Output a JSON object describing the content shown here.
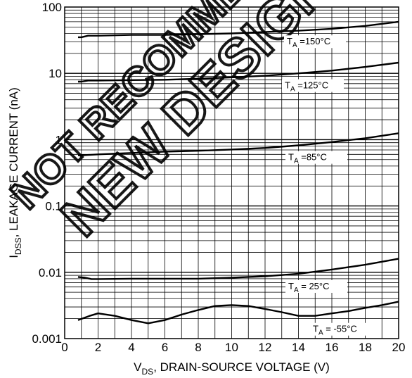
{
  "chart_data": {
    "type": "line",
    "x_label": {
      "main": "V",
      "sub": "DS",
      "rest": ", DRAIN-SOURCE VOLTAGE (V)"
    },
    "y_label": {
      "main": "I",
      "sub": "DSS",
      "rest": ", LEAKAGE CURRENT (nA)"
    },
    "x_range": [
      0,
      20
    ],
    "y_range": [
      0.001,
      100
    ],
    "y_scale": "log",
    "grid": true,
    "x_ticks": [
      "0",
      "2",
      "4",
      "6",
      "8",
      "10",
      "12",
      "14",
      "16",
      "18",
      "20"
    ],
    "y_ticks": [
      {
        "value": 100,
        "label": "100"
      },
      {
        "value": 10,
        "label": "10"
      },
      {
        "value": 1,
        "label": "1"
      },
      {
        "value": 0.1,
        "label": "0.1"
      },
      {
        "value": 0.01,
        "label": "0.01"
      },
      {
        "value": 0.001,
        "label": "0.001"
      }
    ],
    "series": [
      {
        "label_main": "T",
        "label_sub": "A",
        "label_rest": " =150°C",
        "x": [
          0.8,
          1.0,
          1.4,
          2,
          4,
          6,
          8,
          10,
          12,
          14,
          16,
          18,
          20
        ],
        "y": [
          35,
          35,
          37,
          37,
          38,
          38,
          39,
          40,
          42,
          44,
          47,
          52,
          60
        ]
      },
      {
        "label_main": "T",
        "label_sub": "A",
        "label_rest": " =125°C",
        "x": [
          0.8,
          1.0,
          1.4,
          2,
          4,
          6,
          8,
          10,
          12,
          14,
          16,
          18,
          20
        ],
        "y": [
          7.5,
          7.5,
          7.8,
          7.8,
          7.9,
          8,
          8.3,
          8.7,
          9.2,
          10,
          11,
          12.5,
          14.5
        ]
      },
      {
        "label_main": "T",
        "label_sub": "A",
        "label_rest": " =85°C",
        "x": [
          0.8,
          1,
          2,
          4,
          6,
          8,
          10,
          12,
          14,
          16,
          18,
          20
        ],
        "y": [
          0.58,
          0.58,
          0.6,
          0.63,
          0.66,
          0.68,
          0.71,
          0.75,
          0.82,
          0.92,
          1.05,
          1.25
        ]
      },
      {
        "label_main": "T",
        "label_sub": "A",
        "label_rest": " = 25°C",
        "x": [
          0.8,
          1.2,
          1.6,
          2,
          4,
          6,
          8,
          10,
          12,
          14,
          16,
          18,
          20
        ],
        "y": [
          0.0085,
          0.0083,
          0.0079,
          0.0079,
          0.008,
          0.008,
          0.008,
          0.0083,
          0.0087,
          0.0095,
          0.011,
          0.013,
          0.016
        ]
      },
      {
        "label_main": "T",
        "label_sub": "A",
        "label_rest": " = -55°C",
        "x": [
          0.8,
          1.5,
          2,
          3,
          4,
          5,
          6,
          7,
          8,
          9,
          10,
          11,
          12,
          13,
          14,
          15,
          16,
          17,
          18,
          19,
          20
        ],
        "y": [
          0.0019,
          0.0022,
          0.0024,
          0.0022,
          0.0019,
          0.0017,
          0.0019,
          0.0023,
          0.0027,
          0.0031,
          0.0032,
          0.0031,
          0.0028,
          0.0025,
          0.0022,
          0.0022,
          0.0024,
          0.0026,
          0.0029,
          0.0032,
          0.0036
        ]
      }
    ]
  },
  "watermark": {
    "line1": "NOT RECOMMENDED FOR",
    "line2": "NEW DESIGN"
  }
}
